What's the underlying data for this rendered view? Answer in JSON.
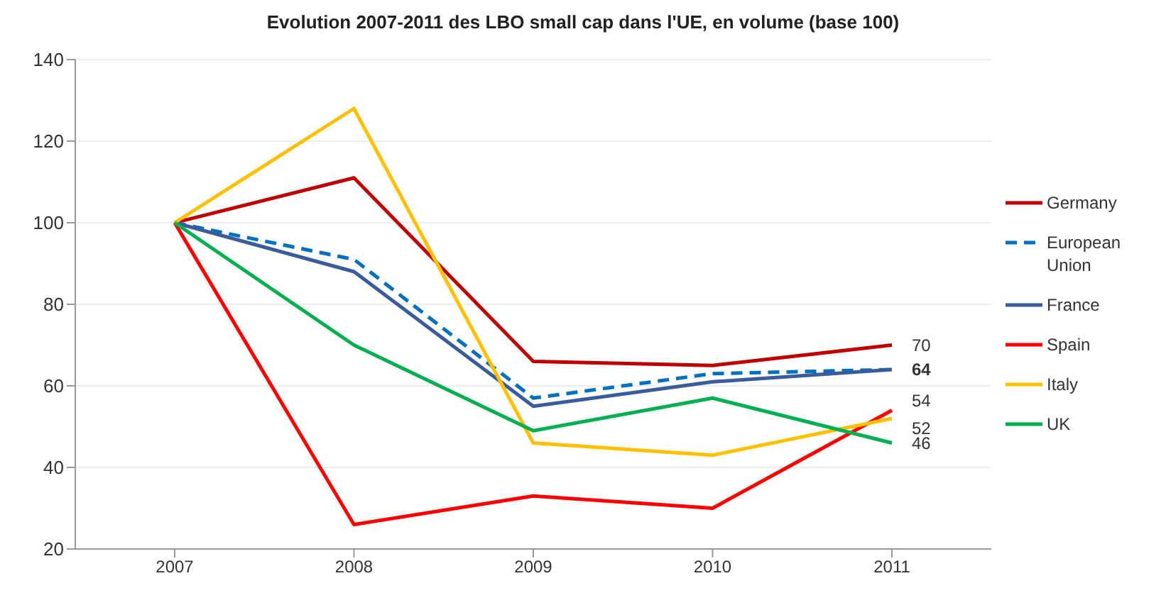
{
  "chart_data": {
    "type": "line",
    "title": "Evolution 2007-2011 des LBO small cap dans l'UE, en volume (base 100)",
    "categories": [
      "2007",
      "2008",
      "2009",
      "2010",
      "2011"
    ],
    "series": [
      {
        "name": "Germany",
        "color": "#c00000",
        "values": [
          100,
          111,
          66,
          65,
          70
        ],
        "value_labels": [
          null,
          null,
          null,
          null,
          "70"
        ]
      },
      {
        "name": "European Union",
        "color": "#0070c0",
        "line_style": "dashed",
        "values": [
          100,
          91,
          57,
          63,
          64
        ],
        "value_labels": [
          null,
          null,
          null,
          null,
          null
        ]
      },
      {
        "name": "France",
        "color": "#3a5b9c",
        "values": [
          100,
          88,
          55,
          61,
          64
        ],
        "value_labels": [
          null,
          null,
          null,
          null,
          "64"
        ]
      },
      {
        "name": "Spain",
        "color": "#ff0000",
        "values": [
          100,
          26,
          33,
          30,
          54
        ],
        "value_labels": [
          null,
          null,
          null,
          null,
          "54"
        ]
      },
      {
        "name": "Italy",
        "color": "#ffc000",
        "values": [
          100,
          128,
          46,
          43,
          52
        ],
        "value_labels": [
          null,
          null,
          null,
          null,
          "52"
        ]
      },
      {
        "name": "UK",
        "color": "#00b050",
        "values": [
          100,
          70,
          49,
          57,
          46
        ],
        "value_labels": [
          null,
          null,
          null,
          null,
          "46"
        ]
      }
    ],
    "ylim": [
      20,
      140
    ],
    "yticks": [
      20,
      40,
      60,
      80,
      100,
      120,
      140
    ],
    "grid": "y",
    "legend": "right",
    "line_style": "solid",
    "marker": "none"
  }
}
